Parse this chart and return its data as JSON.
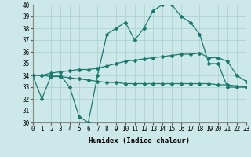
{
  "x": [
    0,
    1,
    2,
    3,
    4,
    5,
    6,
    7,
    8,
    9,
    10,
    11,
    12,
    13,
    14,
    15,
    16,
    17,
    18,
    19,
    20,
    21,
    22,
    23
  ],
  "y_main": [
    34,
    32,
    34,
    34,
    33,
    30.5,
    30,
    34,
    37.5,
    38,
    38.5,
    37,
    38,
    39.5,
    40,
    40,
    39,
    38.5,
    37.5,
    35,
    35,
    33,
    33,
    33
  ],
  "y_upper": [
    34,
    34,
    34.2,
    34.3,
    34.4,
    34.5,
    34.5,
    34.6,
    34.8,
    35.0,
    35.2,
    35.3,
    35.4,
    35.5,
    35.6,
    35.7,
    35.8,
    35.8,
    35.9,
    35.5,
    35.5,
    35.2,
    34.0,
    33.5
  ],
  "y_lower": [
    34,
    34,
    33.9,
    33.9,
    33.8,
    33.7,
    33.6,
    33.5,
    33.4,
    33.4,
    33.3,
    33.3,
    33.3,
    33.3,
    33.3,
    33.3,
    33.3,
    33.3,
    33.3,
    33.3,
    33.2,
    33.2,
    33.1,
    33.0
  ],
  "line_color": "#1a7a6e",
  "bg_color": "#cce8e8",
  "grid_color": "#aacece",
  "xlabel": "Humidex (Indice chaleur)",
  "ylim": [
    30,
    40
  ],
  "xlim": [
    0,
    23
  ],
  "yticks": [
    30,
    31,
    32,
    33,
    34,
    35,
    36,
    37,
    38,
    39,
    40
  ],
  "xticks": [
    0,
    1,
    2,
    3,
    4,
    5,
    6,
    7,
    8,
    9,
    10,
    11,
    12,
    13,
    14,
    15,
    16,
    17,
    18,
    19,
    20,
    21,
    22,
    23
  ]
}
